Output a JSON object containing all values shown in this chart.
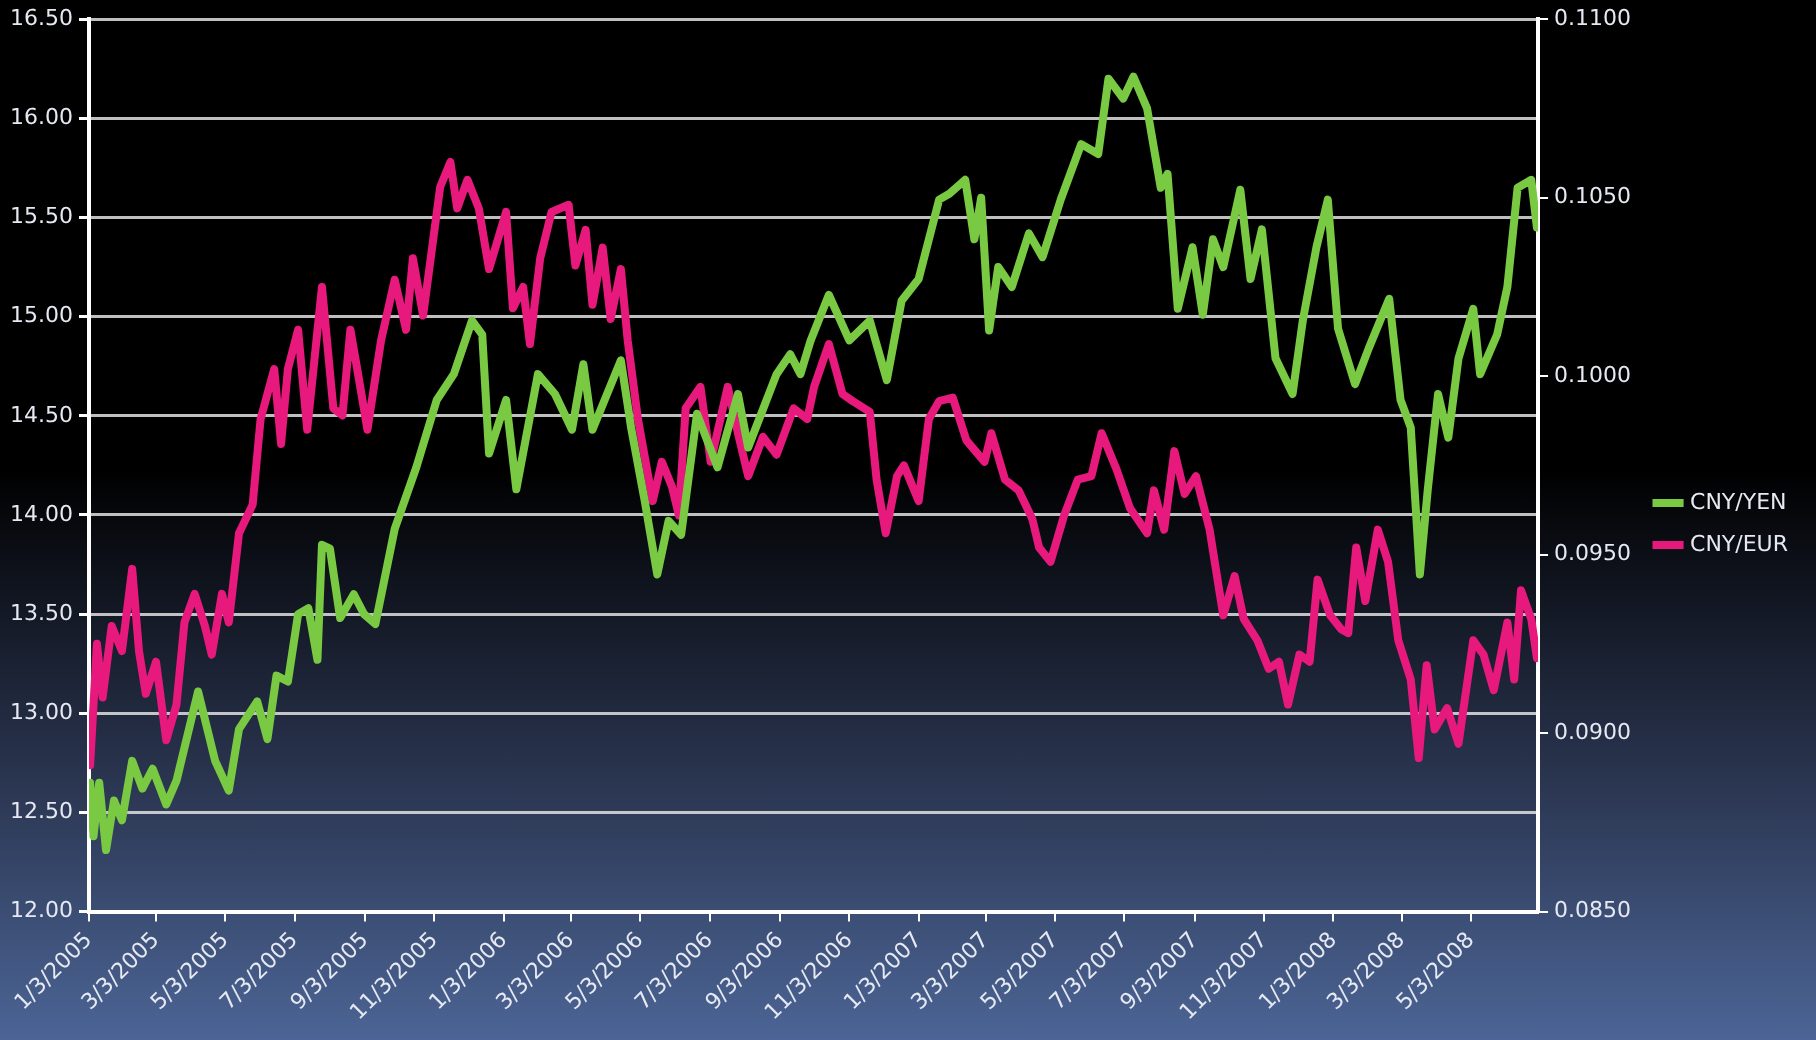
{
  "chart_data": {
    "type": "line",
    "legend": "right",
    "grid": "y",
    "xlim": [
      "2005-01-03",
      "2008-07-01"
    ],
    "xticks": [
      {
        "value": "2005-01-03",
        "label": "1/3/2005"
      },
      {
        "value": "2005-03-03",
        "label": "3/3/2005"
      },
      {
        "value": "2005-05-03",
        "label": "5/3/2005"
      },
      {
        "value": "2005-07-03",
        "label": "7/3/2005"
      },
      {
        "value": "2005-09-03",
        "label": "9/3/2005"
      },
      {
        "value": "2005-11-03",
        "label": "11/3/2005"
      },
      {
        "value": "2006-01-03",
        "label": "1/3/2006"
      },
      {
        "value": "2006-03-03",
        "label": "3/3/2006"
      },
      {
        "value": "2006-05-03",
        "label": "5/3/2006"
      },
      {
        "value": "2006-07-03",
        "label": "7/3/2006"
      },
      {
        "value": "2006-09-03",
        "label": "9/3/2006"
      },
      {
        "value": "2006-11-03",
        "label": "11/3/2006"
      },
      {
        "value": "2007-01-03",
        "label": "1/3/2007"
      },
      {
        "value": "2007-03-03",
        "label": "3/3/2007"
      },
      {
        "value": "2007-05-03",
        "label": "5/3/2007"
      },
      {
        "value": "2007-07-03",
        "label": "7/3/2007"
      },
      {
        "value": "2007-09-03",
        "label": "9/3/2007"
      },
      {
        "value": "2007-11-03",
        "label": "11/3/2007"
      },
      {
        "value": "2008-01-03",
        "label": "1/3/2008"
      },
      {
        "value": "2008-03-03",
        "label": "3/3/2008"
      },
      {
        "value": "2008-05-03",
        "label": "5/3/2008"
      }
    ],
    "ylim": [
      12,
      16.5
    ],
    "yticks": [
      {
        "value": 12,
        "label": "12.00"
      },
      {
        "value": 12.5,
        "label": "12.50"
      },
      {
        "value": 13,
        "label": "13.00"
      },
      {
        "value": 13.5,
        "label": "13.50"
      },
      {
        "value": 14,
        "label": "14.00"
      },
      {
        "value": 14.5,
        "label": "14.50"
      },
      {
        "value": 15,
        "label": "15.00"
      },
      {
        "value": 15.5,
        "label": "15.50"
      },
      {
        "value": 16,
        "label": "16.00"
      },
      {
        "value": 16.5,
        "label": "16.50"
      }
    ],
    "y2lim": [
      0.085,
      0.11
    ],
    "y2ticks": [
      {
        "value": 0.085,
        "label": "0.0850"
      },
      {
        "value": 0.09,
        "label": "0.0900"
      },
      {
        "value": 0.095,
        "label": "0.0950"
      },
      {
        "value": 0.1,
        "label": "0.1000"
      },
      {
        "value": 0.105,
        "label": "0.1050"
      },
      {
        "value": 0.11,
        "label": "0.1100"
      }
    ],
    "series": [
      {
        "name": "CNY/YEN",
        "color": "#7ac943",
        "x": [
          "2005-01-04",
          "2005-01-07",
          "2005-01-12",
          "2005-01-18",
          "2005-01-25",
          "2005-02-01",
          "2005-02-10",
          "2005-02-19",
          "2005-02-28",
          "2005-03-12",
          "2005-03-21",
          "2005-04-09",
          "2005-04-24",
          "2005-05-06",
          "2005-05-15",
          "2005-05-31",
          "2005-06-09",
          "2005-06-17",
          "2005-06-27",
          "2005-07-06",
          "2005-07-15",
          "2005-07-23",
          "2005-07-27",
          "2005-08-03",
          "2005-08-12",
          "2005-08-24",
          "2005-09-02",
          "2005-09-12",
          "2005-09-29",
          "2005-10-18",
          "2005-11-05",
          "2005-11-20",
          "2005-12-06",
          "2005-12-15",
          "2005-12-21",
          "2006-01-05",
          "2006-01-14",
          "2006-02-02",
          "2006-02-17",
          "2006-03-04",
          "2006-03-14",
          "2006-03-22",
          "2006-04-16",
          "2006-04-25",
          "2006-05-07",
          "2006-05-18",
          "2006-05-28",
          "2006-06-08",
          "2006-06-22",
          "2006-07-10",
          "2006-07-28",
          "2006-08-06",
          "2006-08-31",
          "2006-09-12",
          "2006-09-21",
          "2006-09-30",
          "2006-10-16",
          "2006-11-03",
          "2006-11-21",
          "2006-12-06",
          "2006-12-19",
          "2007-01-03",
          "2007-01-21",
          "2007-01-30",
          "2007-02-13",
          "2007-02-21",
          "2007-02-27",
          "2007-03-06",
          "2007-03-14",
          "2007-03-26",
          "2007-04-10",
          "2007-04-22",
          "2007-05-08",
          "2007-05-26",
          "2007-06-10",
          "2007-06-19",
          "2007-07-02",
          "2007-07-11",
          "2007-07-23",
          "2007-08-04",
          "2007-08-10",
          "2007-08-19",
          "2007-09-01",
          "2007-09-10",
          "2007-09-19",
          "2007-09-28",
          "2007-10-13",
          "2007-10-22",
          "2007-11-01",
          "2007-11-13",
          "2007-11-28",
          "2007-12-07",
          "2007-12-19",
          "2007-12-29",
          "2008-01-07",
          "2008-01-22",
          "2008-02-03",
          "2008-02-21",
          "2008-03-02",
          "2008-03-11",
          "2008-03-19",
          "2008-03-26",
          "2008-04-04",
          "2008-04-13",
          "2008-04-22",
          "2008-05-05",
          "2008-05-11",
          "2008-05-26",
          "2008-06-04",
          "2008-06-13",
          "2008-06-25",
          "2008-06-30"
        ],
        "values": [
          12.65,
          12.38,
          12.65,
          12.31,
          12.56,
          12.46,
          12.76,
          12.62,
          12.72,
          12.54,
          12.66,
          13.11,
          12.76,
          12.61,
          12.92,
          13.06,
          12.87,
          13.19,
          13.16,
          13.5,
          13.53,
          13.27,
          13.85,
          13.83,
          13.48,
          13.6,
          13.5,
          13.45,
          13.93,
          14.24,
          14.58,
          14.71,
          14.98,
          14.91,
          14.31,
          14.58,
          14.13,
          14.71,
          14.61,
          14.43,
          14.76,
          14.43,
          14.78,
          14.44,
          14.07,
          13.7,
          13.97,
          13.9,
          14.51,
          14.24,
          14.61,
          14.34,
          14.71,
          14.81,
          14.71,
          14.88,
          15.11,
          14.88,
          14.98,
          14.68,
          15.08,
          15.19,
          15.59,
          15.62,
          15.69,
          15.39,
          15.6,
          14.93,
          15.25,
          15.15,
          15.42,
          15.3,
          15.59,
          15.87,
          15.82,
          16.2,
          16.1,
          16.21,
          16.05,
          15.65,
          15.72,
          15.04,
          15.35,
          15.01,
          15.39,
          15.25,
          15.64,
          15.19,
          15.44,
          14.79,
          14.61,
          14.98,
          15.35,
          15.59,
          14.94,
          14.66,
          14.84,
          15.09,
          14.58,
          14.44,
          13.7,
          14.13,
          14.61,
          14.39,
          14.79,
          15.04,
          14.71,
          14.91,
          15.15,
          15.65,
          15.69,
          15.45
        ]
      },
      {
        "name": "CNY/EUR",
        "color": "#e8197d",
        "axis": "y2",
        "x": [
          "2005-01-04",
          "2005-01-10",
          "2005-01-15",
          "2005-01-23",
          "2005-02-01",
          "2005-02-10",
          "2005-02-16",
          "2005-02-22",
          "2005-03-03",
          "2005-03-12",
          "2005-03-21",
          "2005-03-28",
          "2005-04-06",
          "2005-04-15",
          "2005-04-21",
          "2005-04-30",
          "2005-05-06",
          "2005-05-15",
          "2005-05-27",
          "2005-06-03",
          "2005-06-15",
          "2005-06-21",
          "2005-06-27",
          "2005-07-06",
          "2005-07-14",
          "2005-07-27",
          "2005-08-06",
          "2005-08-14",
          "2005-08-21",
          "2005-08-27",
          "2005-09-05",
          "2005-09-17",
          "2005-09-29",
          "2005-10-09",
          "2005-10-15",
          "2005-10-24",
          "2005-11-08",
          "2005-11-17",
          "2005-11-23",
          "2005-12-02",
          "2005-12-12",
          "2005-12-21",
          "2006-01-05",
          "2006-01-11",
          "2006-01-20",
          "2006-01-26",
          "2006-02-04",
          "2006-02-14",
          "2006-03-01",
          "2006-03-07",
          "2006-03-16",
          "2006-03-22",
          "2006-03-31",
          "2006-04-07",
          "2006-04-16",
          "2006-04-22",
          "2006-05-01",
          "2006-05-14",
          "2006-05-22",
          "2006-05-31",
          "2006-06-06",
          "2006-06-12",
          "2006-06-25",
          "2006-07-04",
          "2006-07-19",
          "2006-07-28",
          "2006-08-06",
          "2006-08-19",
          "2006-08-31",
          "2006-09-15",
          "2006-09-27",
          "2006-10-03",
          "2006-10-16",
          "2006-10-28",
          "2006-11-06",
          "2006-11-21",
          "2006-11-27",
          "2006-12-05",
          "2006-12-15",
          "2006-12-21",
          "2007-01-03",
          "2007-01-12",
          "2007-01-21",
          "2007-02-02",
          "2007-02-14",
          "2007-03-02",
          "2007-03-08",
          "2007-03-20",
          "2007-04-01",
          "2007-04-13",
          "2007-04-19",
          "2007-04-29",
          "2007-05-11",
          "2007-05-23",
          "2007-06-04",
          "2007-06-13",
          "2007-06-26",
          "2007-07-08",
          "2007-07-23",
          "2007-07-29",
          "2007-08-07",
          "2007-08-16",
          "2007-08-25",
          "2007-09-04",
          "2007-09-16",
          "2007-09-28",
          "2007-10-08",
          "2007-10-16",
          "2007-10-28",
          "2007-11-07",
          "2007-11-16",
          "2007-11-24",
          "2007-12-04",
          "2007-12-13",
          "2007-12-20",
          "2007-12-31",
          "2008-01-10",
          "2008-01-16",
          "2008-01-23",
          "2008-01-31",
          "2008-02-11",
          "2008-02-20",
          "2008-02-29",
          "2008-03-11",
          "2008-03-18",
          "2008-03-25",
          "2008-04-01",
          "2008-04-12",
          "2008-04-22",
          "2008-05-05",
          "2008-05-14",
          "2008-05-23",
          "2008-06-04",
          "2008-06-10",
          "2008-06-16",
          "2008-06-25",
          "2008-06-30"
        ],
        "values": [
          0.0891,
          0.0925,
          0.091,
          0.093,
          0.0923,
          0.0946,
          0.0923,
          0.0911,
          0.092,
          0.0898,
          0.0908,
          0.0931,
          0.0939,
          0.093,
          0.0922,
          0.0939,
          0.0931,
          0.0956,
          0.0964,
          0.0988,
          0.1002,
          0.0981,
          0.1002,
          0.1013,
          0.0985,
          0.1025,
          0.0991,
          0.0989,
          0.1013,
          0.1002,
          0.0985,
          0.101,
          0.1027,
          0.1013,
          0.1033,
          0.1017,
          0.1053,
          0.106,
          0.1047,
          0.1055,
          0.1047,
          0.103,
          0.1046,
          0.1019,
          0.1025,
          0.1009,
          0.1033,
          0.1046,
          0.1048,
          0.1031,
          0.1041,
          0.102,
          0.1036,
          0.1016,
          0.103,
          0.101,
          0.0988,
          0.0965,
          0.0976,
          0.0969,
          0.0961,
          0.0991,
          0.0997,
          0.0976,
          0.0997,
          0.0984,
          0.0972,
          0.0983,
          0.0978,
          0.0991,
          0.0988,
          0.0997,
          0.1009,
          0.0995,
          0.0993,
          0.099,
          0.0971,
          0.0956,
          0.0972,
          0.0975,
          0.0965,
          0.0988,
          0.0993,
          0.0994,
          0.0982,
          0.0976,
          0.0984,
          0.0971,
          0.0968,
          0.096,
          0.0952,
          0.0948,
          0.0961,
          0.0971,
          0.0972,
          0.0984,
          0.0974,
          0.0963,
          0.0956,
          0.0968,
          0.0957,
          0.0979,
          0.0967,
          0.0972,
          0.0957,
          0.0933,
          0.0944,
          0.0932,
          0.0926,
          0.0918,
          0.092,
          0.0908,
          0.0922,
          0.092,
          0.0943,
          0.0933,
          0.0929,
          0.0928,
          0.0952,
          0.0937,
          0.0957,
          0.0948,
          0.0926,
          0.0915,
          0.0893,
          0.0919,
          0.0901,
          0.0907,
          0.0897,
          0.0926,
          0.0922,
          0.0912,
          0.0931,
          0.0915,
          0.094,
          0.0932,
          0.0921
        ]
      }
    ]
  }
}
